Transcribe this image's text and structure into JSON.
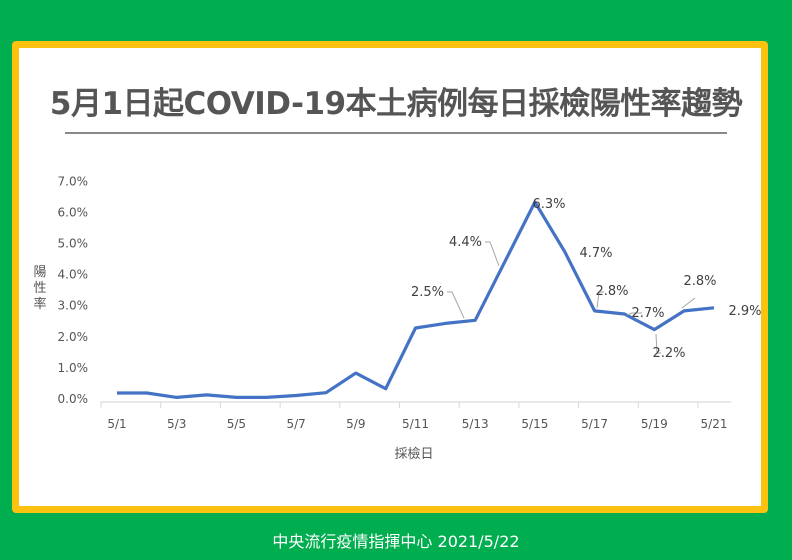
{
  "page": {
    "title": "5月1日起COVID-19本土病例每日採檢陽性率趨勢",
    "footer": "中央流行疫情指揮中心  2021/5/22",
    "colors": {
      "background": "#00ad4f",
      "frame": "#fcc20f",
      "line": "#4472c4",
      "text": "#555555"
    }
  },
  "chart_data": {
    "type": "line",
    "title": "5月1日起COVID-19本土病例每日採檢陽性率趨勢",
    "xlabel": "採檢日",
    "ylabel": "陽性率",
    "ylim": [
      0,
      7.0
    ],
    "yticks": [
      "0.0%",
      "1.0%",
      "2.0%",
      "3.0%",
      "4.0%",
      "5.0%",
      "6.0%",
      "7.0%"
    ],
    "xtick_labels": [
      "5/1",
      "5/3",
      "5/5",
      "5/7",
      "5/9",
      "5/11",
      "5/13",
      "5/15",
      "5/17",
      "5/19",
      "5/21"
    ],
    "grid": false,
    "legend": "none",
    "x": [
      "5/1",
      "5/2",
      "5/3",
      "5/4",
      "5/5",
      "5/6",
      "5/7",
      "5/8",
      "5/9",
      "5/10",
      "5/11",
      "5/12",
      "5/13",
      "5/14",
      "5/15",
      "5/16",
      "5/17",
      "5/18",
      "5/19",
      "5/20",
      "5/21"
    ],
    "series": [
      {
        "name": "陽性率",
        "values": [
          0.16,
          0.16,
          0.02,
          0.1,
          0.02,
          0.02,
          0.08,
          0.17,
          0.8,
          0.3,
          2.25,
          2.4,
          2.5,
          4.4,
          6.3,
          4.7,
          2.8,
          2.7,
          2.2,
          2.8,
          2.9
        ]
      }
    ],
    "annotations": [
      {
        "x": "5/13",
        "label": "2.5%"
      },
      {
        "x": "5/14",
        "label": "4.4%"
      },
      {
        "x": "5/15",
        "label": "6.3%"
      },
      {
        "x": "5/16",
        "label": "4.7%"
      },
      {
        "x": "5/17",
        "label": "2.8%"
      },
      {
        "x": "5/18",
        "label": "2.7%"
      },
      {
        "x": "5/19",
        "label": "2.2%"
      },
      {
        "x": "5/20",
        "label": "2.8%"
      },
      {
        "x": "5/21",
        "label": "2.9%"
      }
    ]
  }
}
